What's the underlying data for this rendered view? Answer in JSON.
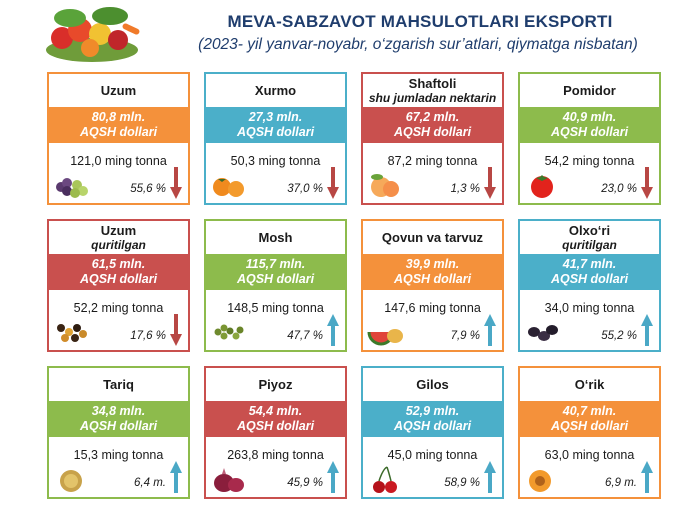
{
  "header": {
    "title": "MEVA-SABZAVOT MAHSULOTLARI EKSPORTI",
    "subtitle": "(2023- yil yanvar-noyabr, o‘zgarish sur’atlari, qiymatga nisbatan)"
  },
  "colors": {
    "orange": "#f4913b",
    "blue": "#4bafc9",
    "red": "#c9504e",
    "green": "#8dbb4c",
    "up": "#4aa8c6",
    "down": "#b84744"
  },
  "chart_data": {
    "type": "table",
    "title": "MEVA-SABZAVOT MAHSULOTLARI EKSPORTI",
    "subtitle": "(2023- yil yanvar-noyabr, o‘zgarish sur’atlari, qiymatga nisbatan)",
    "items": [
      {
        "name": "Uzum",
        "sub": "",
        "value_text": "80,8 mln.",
        "unit": "AQSH dollari",
        "value": 80.8,
        "tonnes_text": "121,0 ming tonna",
        "tonnes": 121.0,
        "change_text": "55,6 %",
        "direction": "down",
        "color": "orange",
        "icon": "grapes-icon"
      },
      {
        "name": "Xurmo",
        "sub": "",
        "value_text": "27,3 mln.",
        "unit": "AQSH dollari",
        "value": 27.3,
        "tonnes_text": "50,3 ming tonna",
        "tonnes": 50.3,
        "change_text": "37,0 %",
        "direction": "down",
        "color": "blue",
        "icon": "persimmon-icon"
      },
      {
        "name": "Shaftoli",
        "sub": "shu jumladan nektarin",
        "value_text": "67,2 mln.",
        "unit": "AQSH dollari",
        "value": 67.2,
        "tonnes_text": "87,2 ming tonna",
        "tonnes": 87.2,
        "change_text": "1,3 %",
        "direction": "down",
        "color": "red",
        "icon": "peach-icon"
      },
      {
        "name": "Pomidor",
        "sub": "",
        "value_text": "40,9 mln.",
        "unit": "AQSH dollari",
        "value": 40.9,
        "tonnes_text": "54,2 ming tonna",
        "tonnes": 54.2,
        "change_text": "23,0 %",
        "direction": "down",
        "color": "green",
        "icon": "tomato-icon"
      },
      {
        "name": "Uzum",
        "sub": "quritilgan",
        "value_text": "61,5 mln.",
        "unit": "AQSH dollari",
        "value": 61.5,
        "tonnes_text": "52,2 ming tonna",
        "tonnes": 52.2,
        "change_text": "17,6 %",
        "direction": "down",
        "color": "red",
        "icon": "raisins-icon"
      },
      {
        "name": "Mosh",
        "sub": "",
        "value_text": "115,7 mln.",
        "unit": "AQSH dollari",
        "value": 115.7,
        "tonnes_text": "148,5 ming tonna",
        "tonnes": 148.5,
        "change_text": "47,7 %",
        "direction": "up",
        "color": "green",
        "icon": "mung-bean-icon"
      },
      {
        "name": "Qovun va tarvuz",
        "sub": "",
        "value_text": "39,9 mln.",
        "unit": "AQSH dollari",
        "value": 39.9,
        "tonnes_text": "147,6 ming tonna",
        "tonnes": 147.6,
        "change_text": "7,9 %",
        "direction": "up",
        "color": "orange",
        "icon": "melon-icon"
      },
      {
        "name": "Olxo‘ri",
        "sub": "quritilgan",
        "value_text": "41,7 mln.",
        "unit": "AQSH dollari",
        "value": 41.7,
        "tonnes_text": "34,0 ming tonna",
        "tonnes": 34.0,
        "change_text": "55,2 %",
        "direction": "up",
        "color": "blue",
        "icon": "prunes-icon"
      },
      {
        "name": "Tariq",
        "sub": "",
        "value_text": "34,8 mln.",
        "unit": "AQSH dollari",
        "value": 34.8,
        "tonnes_text": "15,3 ming tonna",
        "tonnes": 15.3,
        "change_text": "6,4 m.",
        "direction": "up",
        "color": "green",
        "icon": "millet-icon"
      },
      {
        "name": "Piyoz",
        "sub": "",
        "value_text": "54,4 mln.",
        "unit": "AQSH dollari",
        "value": 54.4,
        "tonnes_text": "263,8 ming tonna",
        "tonnes": 263.8,
        "change_text": "45,9 %",
        "direction": "up",
        "color": "red",
        "icon": "onion-icon"
      },
      {
        "name": "Gilos",
        "sub": "",
        "value_text": "52,9 mln.",
        "unit": "AQSH dollari",
        "value": 52.9,
        "tonnes_text": "45,0 ming tonna",
        "tonnes": 45.0,
        "change_text": "58,9 %",
        "direction": "up",
        "color": "blue",
        "icon": "cherry-icon"
      },
      {
        "name": "O‘rik",
        "sub": "",
        "value_text": "40,7 mln.",
        "unit": "AQSH dollari",
        "value": 40.7,
        "tonnes_text": "63,0 ming tonna",
        "tonnes": 63.0,
        "change_text": "6,9 m.",
        "direction": "up",
        "color": "orange",
        "icon": "apricot-icon"
      }
    ]
  }
}
